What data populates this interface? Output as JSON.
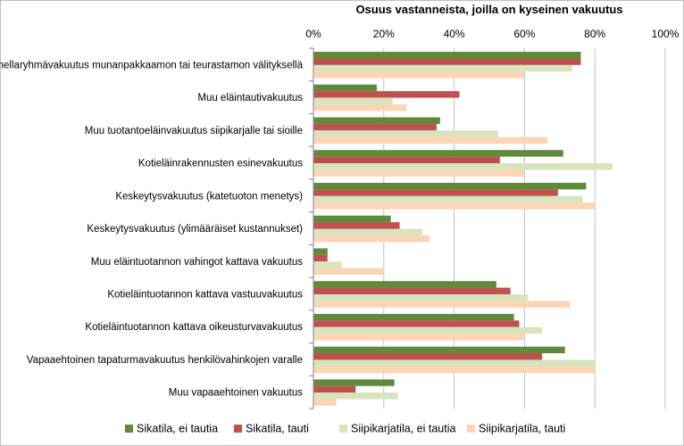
{
  "chart_data": {
    "type": "bar",
    "orientation": "horizontal",
    "title": "Osuus vastanneista, joilla on kyseinen vakuutus",
    "xlim": [
      0,
      100
    ],
    "x_ticks": [
      "0%",
      "20%",
      "40%",
      "60%",
      "80%",
      "100%"
    ],
    "grid": true,
    "legend_position": "bottom",
    "categories": [
      "Salmonellaryhmävakuutus munanpakkaamon tai teurastamon välityksellä",
      "Muu eläintautivakuutus",
      "Muu tuotantoeläinvakuutus siipikarjalle tai sioille",
      "Kotieläinrakennusten esinevakuutus",
      "Keskeytysvakuutus (katetuoton menetys)",
      "Keskeytysvakuutus (ylimääräiset kustannukset)",
      "Muu eläintuotannon vahingot kattava vakuutus",
      "Kotieläintuotannon kattava vastuuvakuutus",
      "Kotieläintuotannon kattava oikeusturvavakuutus",
      "Vapaaehtoinen tapaturmavakuutus henkilövahinkojen varalle",
      "Muu vapaaehtoinen vakuutus"
    ],
    "series": [
      {
        "name": "Sikatila, ei tautia",
        "color": "#5f8a3a",
        "values": [
          76,
          18,
          36,
          71,
          77.5,
          22,
          4,
          52,
          57,
          71.5,
          23
        ]
      },
      {
        "name": "Sikatila, tauti",
        "color": "#c0504d",
        "values": [
          76,
          41.5,
          35,
          53,
          69.5,
          24.5,
          4,
          56,
          58.5,
          65,
          12
        ]
      },
      {
        "name": "Siipikarjatila, ei tautia",
        "color": "#d7e4bd",
        "values": [
          73.5,
          22.5,
          52.5,
          85,
          76.5,
          31,
          8,
          61,
          65,
          80,
          24
        ]
      },
      {
        "name": "Siipikarjatila, tauti",
        "color": "#fcd5b4",
        "values": [
          60,
          26.5,
          66.5,
          60,
          80,
          33,
          20,
          73,
          60,
          80,
          6.5
        ]
      }
    ]
  }
}
